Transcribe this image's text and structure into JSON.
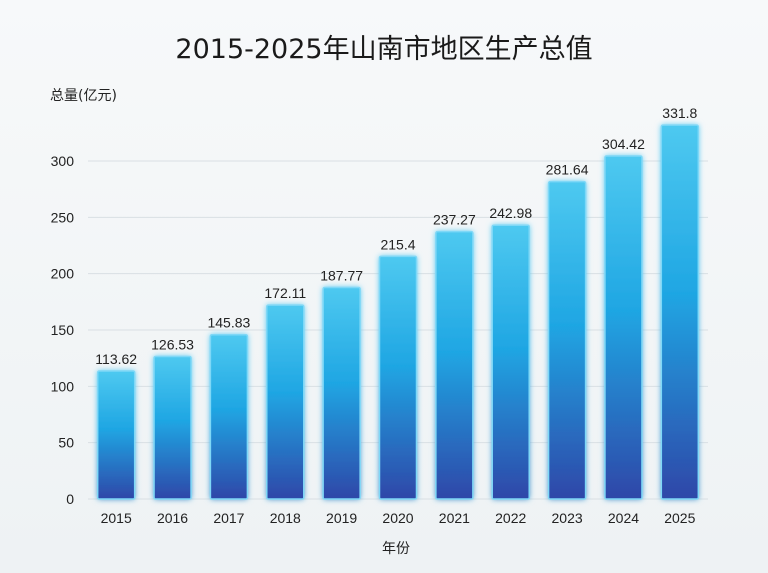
{
  "chart_data": {
    "type": "bar",
    "title": "2015-2025年山南市地区生产总值",
    "ylabel": "总量(亿元)",
    "xlabel": "年份",
    "categories": [
      "2015",
      "2016",
      "2017",
      "2018",
      "2019",
      "2020",
      "2021",
      "2022",
      "2023",
      "2024",
      "2025"
    ],
    "values": [
      113.62,
      126.53,
      145.83,
      172.11,
      187.77,
      215.4,
      237.27,
      242.98,
      281.64,
      304.42,
      331.8
    ],
    "data_labels": [
      "113.62",
      "126.53",
      "145.83",
      "172.11",
      "187.77",
      "215.4",
      "237.27",
      "242.98",
      "281.64",
      "304.42",
      "331.8"
    ],
    "ylim": [
      0,
      300
    ],
    "yticks": [
      "0",
      "50",
      "100",
      "150",
      "200",
      "250",
      "300"
    ],
    "grid": true,
    "colors": {
      "bar_top": "#4ec9f0",
      "bar_mid": "#1fa6e3",
      "bar_bottom": "#2f47a8",
      "glow": "#7fd8f7"
    }
  }
}
